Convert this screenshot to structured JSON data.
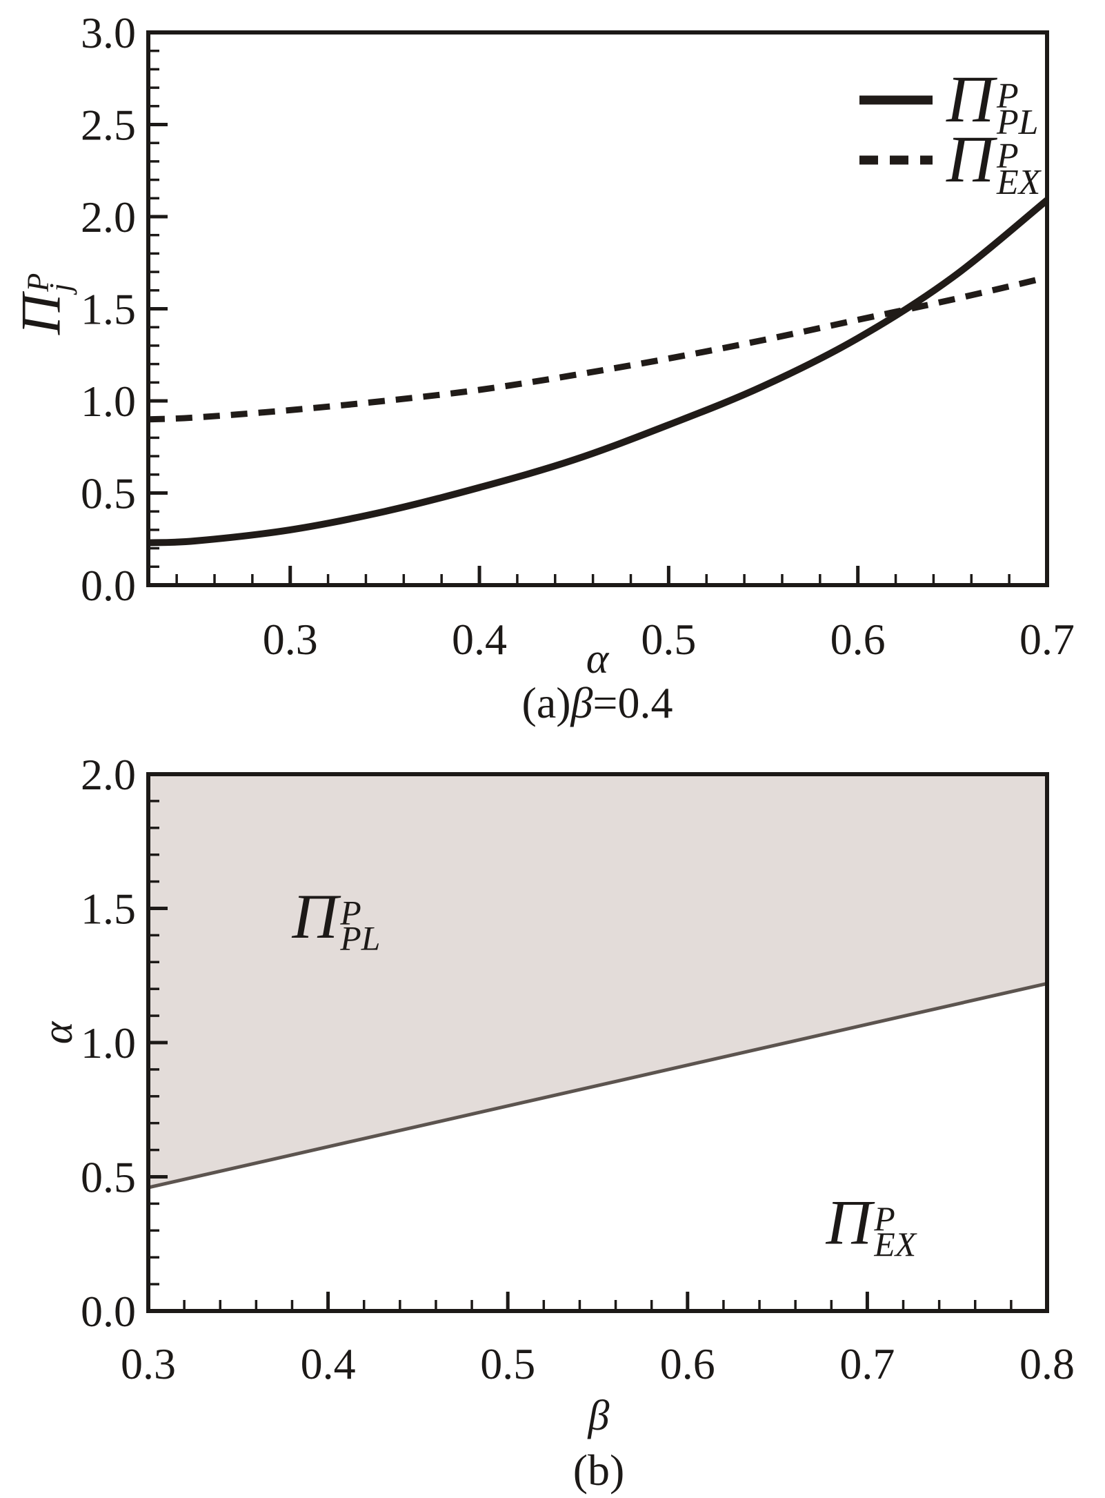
{
  "figure": {
    "background": "#ffffff",
    "ink": "#1c1917",
    "curve_color": "#201b18",
    "region_fill": "#e3dcd9",
    "boundary_color": "#5c544f"
  },
  "chart_data": [
    {
      "panel": "a",
      "type": "line",
      "caption": "(a)β=0.4",
      "xlabel": "α",
      "ylabel": {
        "main": "Π",
        "sup": "P",
        "sub": "j"
      },
      "xlim": [
        0.225,
        0.7
      ],
      "ylim": [
        0,
        3
      ],
      "x_major_ticks": [
        "0.3",
        "0.4",
        "0.5",
        "0.6",
        "0.7"
      ],
      "y_major_ticks": [
        "0.0",
        "0.5",
        "1.0",
        "1.5",
        "2.0",
        "2.5",
        "3.0"
      ],
      "x_minor_step": 0.02,
      "y_minor_step": 0.1,
      "grid": false,
      "legend": {
        "position": "upper-right",
        "entries": [
          {
            "style": "solid",
            "main": "Π",
            "sup": "P",
            "sub": "PL"
          },
          {
            "style": "dashed",
            "main": "Π",
            "sup": "P",
            "sub": "EX"
          }
        ]
      },
      "x": [
        0.225,
        0.25,
        0.3,
        0.35,
        0.4,
        0.45,
        0.5,
        0.55,
        0.6,
        0.65,
        0.7
      ],
      "series": [
        {
          "name": "Π_PL^P",
          "style": "solid",
          "width": 10,
          "values": [
            0.23,
            0.24,
            0.3,
            0.4,
            0.53,
            0.68,
            0.87,
            1.08,
            1.34,
            1.67,
            2.09
          ]
        },
        {
          "name": "Π_EX^P",
          "style": "dashed",
          "width": 9,
          "values": [
            0.9,
            0.91,
            0.95,
            1.0,
            1.06,
            1.14,
            1.23,
            1.33,
            1.44,
            1.55,
            1.67
          ]
        }
      ],
      "intersection_estimate": {
        "x": 0.63,
        "y": 1.52
      }
    },
    {
      "panel": "b",
      "type": "region",
      "caption": "(b)",
      "xlabel": "β",
      "ylabel": {
        "main": "α"
      },
      "xlim": [
        0.3,
        0.8
      ],
      "ylim": [
        0,
        2
      ],
      "x_major_ticks": [
        "0.3",
        "0.4",
        "0.5",
        "0.6",
        "0.7",
        "0.8"
      ],
      "y_major_ticks": [
        "0.0",
        "0.5",
        "1.0",
        "1.5",
        "2.0"
      ],
      "x_minor_step": 0.02,
      "y_minor_step": 0.1,
      "grid": false,
      "boundary": {
        "x": [
          0.3,
          0.8
        ],
        "y": [
          0.46,
          1.22
        ]
      },
      "regions": [
        {
          "main": "Π",
          "sup": "P",
          "sub": "PL",
          "side": "above",
          "shaded": true,
          "label_at": {
            "x": 0.38,
            "y": 1.49
          }
        },
        {
          "main": "Π",
          "sup": "P",
          "sub": "EX",
          "side": "below",
          "shaded": false,
          "label_at": {
            "x": 0.677,
            "y": 0.35
          }
        }
      ]
    }
  ]
}
